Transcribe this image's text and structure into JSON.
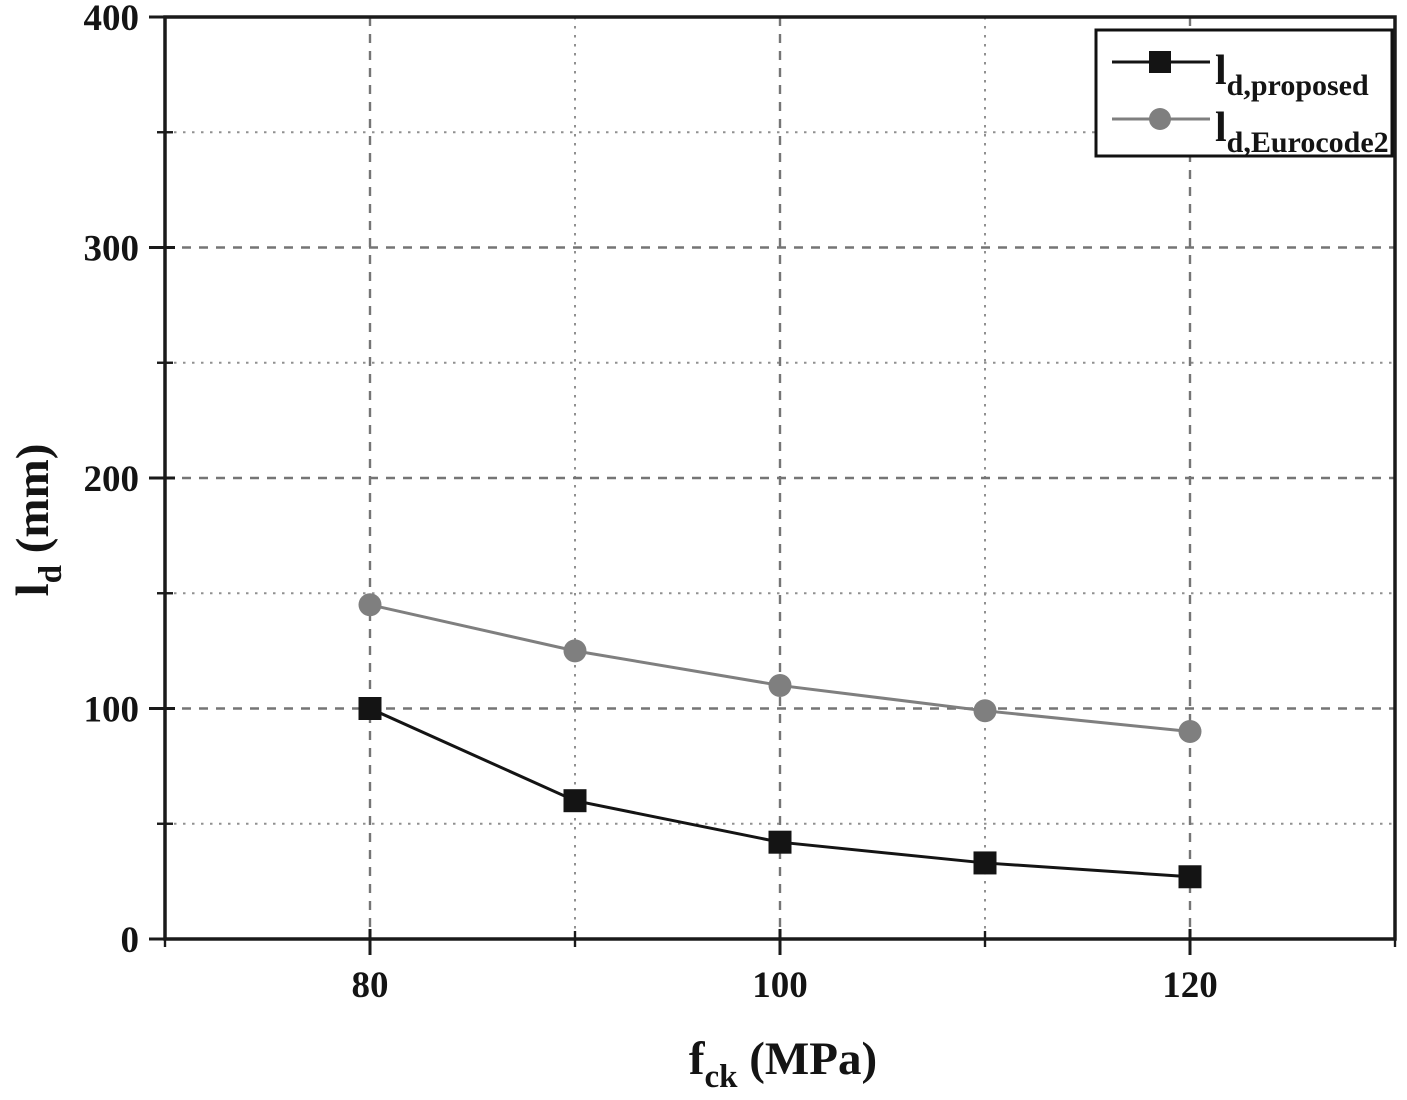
{
  "figure": {
    "background": "#ffffff"
  },
  "chart_data": {
    "type": "line",
    "x": [
      80,
      90,
      100,
      110,
      120
    ],
    "series": [
      {
        "name": "l_d,proposed",
        "legend_main": "l",
        "legend_sub": "d,proposed",
        "marker": "square",
        "color": "#141414",
        "values": [
          100,
          60,
          42,
          33,
          27
        ]
      },
      {
        "name": "l_d,Eurocode2",
        "legend_main": "l",
        "legend_sub": "d,Eurocode2",
        "marker": "circle",
        "color": "#7f7f7f",
        "values": [
          145,
          125,
          110,
          99,
          90
        ]
      }
    ],
    "xlabel": {
      "main": "f",
      "sub": "ck",
      "rest": " (MPa)"
    },
    "ylabel": {
      "main": "l",
      "sub": "d",
      "rest": " (mm)"
    },
    "xlim": [
      70,
      130
    ],
    "ylim": [
      0,
      400
    ],
    "x_major_ticks": [
      80,
      100,
      120
    ],
    "x_minor_ticks": [
      70,
      90,
      110,
      130
    ],
    "y_major_ticks": [
      0,
      100,
      200,
      300,
      400
    ],
    "y_minor_ticks": [
      50,
      150,
      250,
      350
    ],
    "grid": {
      "major_style": "dashed",
      "minor_style": "dotted",
      "major_color": "#757575",
      "minor_color": "#909090"
    },
    "legend_position": "top-right",
    "frame_color": "#1a1a1a"
  }
}
